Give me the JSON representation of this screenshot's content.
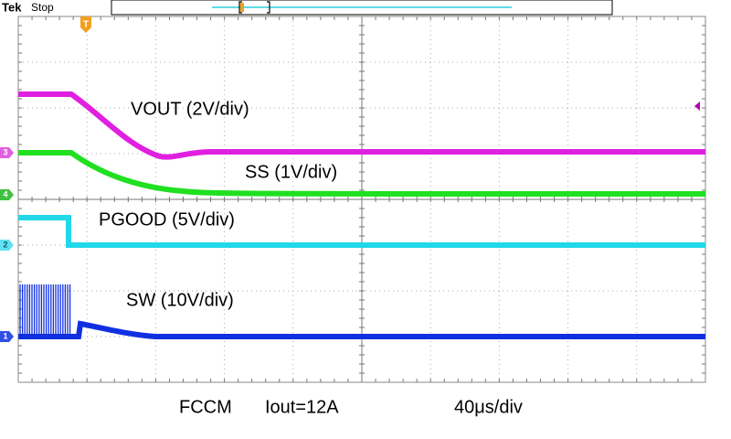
{
  "header": {
    "brand": "Tek",
    "status": "Stop"
  },
  "trigger": {
    "label": "T"
  },
  "channels": [
    {
      "label": "3"
    },
    {
      "label": "4"
    },
    {
      "label": "2"
    },
    {
      "label": "1"
    }
  ],
  "traces": [
    {
      "label": "VOUT (2V/div)"
    },
    {
      "label": "SS (1V/div)"
    },
    {
      "label": "PGOOD (5V/div)"
    },
    {
      "label": "SW (10V/div)"
    }
  ],
  "footer": {
    "mode": "FCCM",
    "load": "Iout=12A",
    "timebase": "40μs/div"
  }
}
